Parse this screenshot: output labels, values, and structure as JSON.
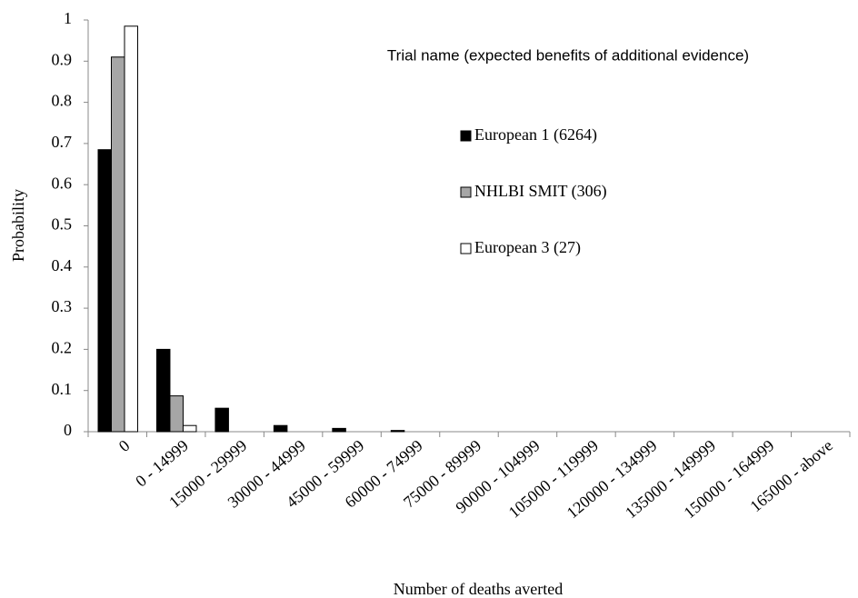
{
  "chart_data": {
    "type": "bar",
    "x_label": "Number of deaths averted",
    "y_label": "Probability",
    "legend_title": "Trial name (expected benefits of additional evidence)",
    "categories": [
      "0",
      "0 - 14999",
      "15000 - 29999",
      "30000 - 44999",
      "45000 - 59999",
      "60000 - 74999",
      "75000 - 89999",
      "90000 - 104999",
      "105000 - 119999",
      "120000 - 134999",
      "135000 - 149999",
      "150000 - 164999",
      "165000 - above"
    ],
    "series": [
      {
        "name": "European 1 (6264)",
        "color": "#000000",
        "values": [
          0.685,
          0.2,
          0.057,
          0.015,
          0.008,
          0.003,
          0,
          0,
          0,
          0,
          0,
          0,
          0
        ]
      },
      {
        "name": "NHLBI SMIT (306)",
        "color": "#a6a6a6",
        "values": [
          0.91,
          0.087,
          0,
          0,
          0,
          0,
          0,
          0,
          0,
          0,
          0,
          0,
          0
        ]
      },
      {
        "name": "European 3 (27)",
        "color": "#ffffff",
        "values": [
          0.985,
          0.015,
          0,
          0,
          0,
          0,
          0,
          0,
          0,
          0,
          0,
          0,
          0
        ]
      }
    ],
    "ylim": [
      0,
      1
    ],
    "yticks": [
      0,
      0.1,
      0.2,
      0.3,
      0.4,
      0.5,
      0.6,
      0.7,
      0.8,
      0.9,
      1
    ],
    "grid": false
  }
}
